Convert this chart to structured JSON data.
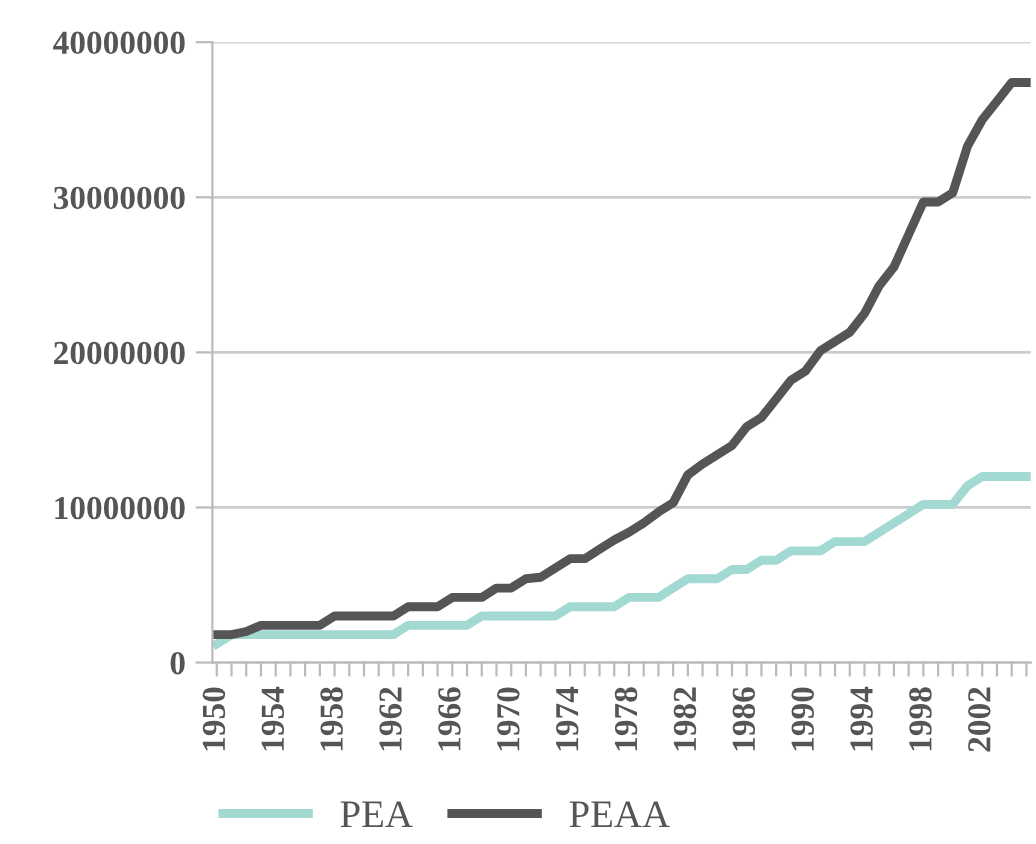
{
  "chart_data": {
    "type": "line",
    "categories": [
      "1950",
      null,
      null,
      null,
      "1954",
      null,
      null,
      null,
      "1958",
      null,
      null,
      null,
      "1962",
      null,
      null,
      null,
      "1966",
      null,
      null,
      null,
      "1970",
      null,
      null,
      null,
      "1974",
      null,
      null,
      null,
      "1978",
      null,
      null,
      null,
      "1982",
      null,
      null,
      null,
      "1986",
      null,
      null,
      null,
      "1990",
      null,
      null,
      null,
      "1994",
      null,
      null,
      null,
      "1998",
      null,
      null,
      null,
      "2002",
      null,
      null,
      null
    ],
    "series": [
      {
        "name": "PEA",
        "color": "#a3d9d3",
        "values": [
          1200000,
          1800000,
          1800000,
          1800000,
          1800000,
          1800000,
          1800000,
          1800000,
          1800000,
          1800000,
          1800000,
          1800000,
          1800000,
          2400000,
          2400000,
          2400000,
          2400000,
          2400000,
          3000000,
          3000000,
          3000000,
          3000000,
          3000000,
          3000000,
          3600000,
          3600000,
          3600000,
          3600000,
          4200000,
          4200000,
          4200000,
          4800000,
          5400000,
          5400000,
          5400000,
          6000000,
          6000000,
          6600000,
          6600000,
          7200000,
          7200000,
          7200000,
          7800000,
          7800000,
          7800000,
          8400000,
          9000000,
          9600000,
          10200000,
          10200000,
          10200000,
          11400000,
          12000000,
          12000000,
          12000000,
          12000000
        ]
      },
      {
        "name": "PEAA",
        "color": "#555555",
        "values": [
          1800000,
          1800000,
          2000000,
          2400000,
          2400000,
          2400000,
          2400000,
          2400000,
          3000000,
          3000000,
          3000000,
          3000000,
          3000000,
          3600000,
          3600000,
          3600000,
          4200000,
          4200000,
          4200000,
          4800000,
          4800000,
          5400000,
          5500000,
          6100000,
          6700000,
          6700000,
          7300000,
          7900000,
          8400000,
          9000000,
          9700000,
          10300000,
          12100000,
          12800000,
          13400000,
          14000000,
          15200000,
          15800000,
          17000000,
          18200000,
          18800000,
          20100000,
          20700000,
          21300000,
          22500000,
          24300000,
          25500000,
          27600000,
          29700000,
          29700000,
          30300000,
          33300000,
          35000000,
          36200000,
          37400000,
          37400000
        ]
      }
    ],
    "ylim": [
      0,
      40000000
    ],
    "yticks": [
      0,
      10000000,
      20000000,
      30000000,
      40000000
    ],
    "grid": "y",
    "legend": "bottom",
    "marker": "none",
    "line_style": "solid"
  }
}
